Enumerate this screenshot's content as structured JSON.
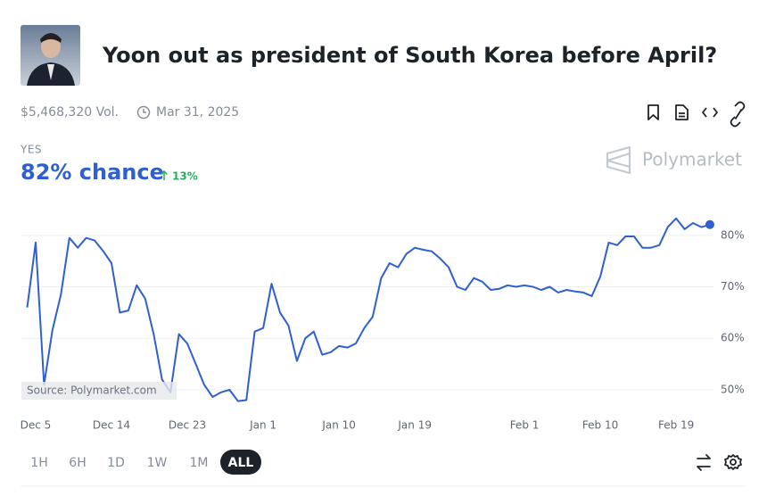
{
  "header": {
    "title": "Yoon out as president of South Korea before April?",
    "volume": "$5,468,320 Vol.",
    "end_date": "Mar 31, 2025"
  },
  "outcome": {
    "name": "YES",
    "chance": "82% chance",
    "change": "13%",
    "brand": "Polymarket"
  },
  "chart_data": {
    "type": "line",
    "x": [
      "Dec 4",
      "Dec 5",
      "Dec 6",
      "Dec 7",
      "Dec 8",
      "Dec 9",
      "Dec 10",
      "Dec 11",
      "Dec 12",
      "Dec 13",
      "Dec 14",
      "Dec 15",
      "Dec 16",
      "Dec 17",
      "Dec 18",
      "Dec 19",
      "Dec 20",
      "Dec 21",
      "Dec 22",
      "Dec 23",
      "Dec 24",
      "Dec 25",
      "Dec 26",
      "Dec 27",
      "Dec 28",
      "Dec 29",
      "Dec 30",
      "Dec 31",
      "Jan 1",
      "Jan 2",
      "Jan 3",
      "Jan 4",
      "Jan 5",
      "Jan 6",
      "Jan 7",
      "Jan 8",
      "Jan 9",
      "Jan 10",
      "Jan 11",
      "Jan 12",
      "Jan 13",
      "Jan 14",
      "Jan 15",
      "Jan 16",
      "Jan 17",
      "Jan 18",
      "Jan 19",
      "Jan 20",
      "Jan 21",
      "Jan 22",
      "Jan 23",
      "Jan 24",
      "Jan 25",
      "Jan 26",
      "Jan 27",
      "Jan 28",
      "Jan 29",
      "Jan 30",
      "Jan 31",
      "Feb 1",
      "Feb 2",
      "Feb 3",
      "Feb 4",
      "Feb 5",
      "Feb 6",
      "Feb 7",
      "Feb 8",
      "Feb 9",
      "Feb 10",
      "Feb 11",
      "Feb 12",
      "Feb 13",
      "Feb 14",
      "Feb 15",
      "Feb 16",
      "Feb 17",
      "Feb 18",
      "Feb 19",
      "Feb 20",
      "Feb 21",
      "Feb 22",
      "Feb 23"
    ],
    "series": [
      {
        "name": "YES",
        "color": "#2f5fd0",
        "values": [
          66,
          78.6,
          51,
          61.6,
          68.5,
          79.5,
          77.6,
          79.5,
          79,
          77,
          74.6,
          65,
          65.4,
          70.3,
          67.7,
          60.8,
          52,
          49.5,
          60.8,
          59,
          55,
          51,
          48.6,
          49.5,
          50,
          47.8,
          48,
          61.3,
          62,
          70.6,
          65,
          62.5,
          55.6,
          60,
          61.3,
          56.8,
          57.3,
          58.5,
          58.2,
          59,
          62,
          64.2,
          71.7,
          74.6,
          73.8,
          76.4,
          77.6,
          77.2,
          76.9,
          75.5,
          73.8,
          70,
          69.4,
          71.7,
          71,
          69.4,
          69.6,
          70.3,
          70,
          70.3,
          70,
          69.4,
          70,
          68.9,
          69.4,
          69.1,
          68.9,
          68.2,
          72,
          78.6,
          78.1,
          79.8,
          79.8,
          77.6,
          77.6,
          78.1,
          81.6,
          83.3,
          81.2,
          82.4,
          81.6,
          82.1
        ]
      }
    ],
    "xticks": [
      "Dec 5",
      "Dec 14",
      "Dec 23",
      "Jan 1",
      "Jan 10",
      "Jan 19",
      "Feb 1",
      "Feb 10",
      "Feb 19"
    ],
    "ylim": [
      46,
      85
    ],
    "yticks": [
      {
        "value": 50,
        "label": "50%"
      },
      {
        "value": 60,
        "label": "60%"
      },
      {
        "value": 70,
        "label": "70%"
      },
      {
        "value": 80,
        "label": "80%"
      }
    ],
    "grid": true,
    "source": "Source: Polymarket.com"
  },
  "timeframes": [
    {
      "label": "1H",
      "selected": false
    },
    {
      "label": "6H",
      "selected": false
    },
    {
      "label": "1D",
      "selected": false
    },
    {
      "label": "1W",
      "selected": false
    },
    {
      "label": "1M",
      "selected": false
    },
    {
      "label": "ALL",
      "selected": true
    }
  ]
}
